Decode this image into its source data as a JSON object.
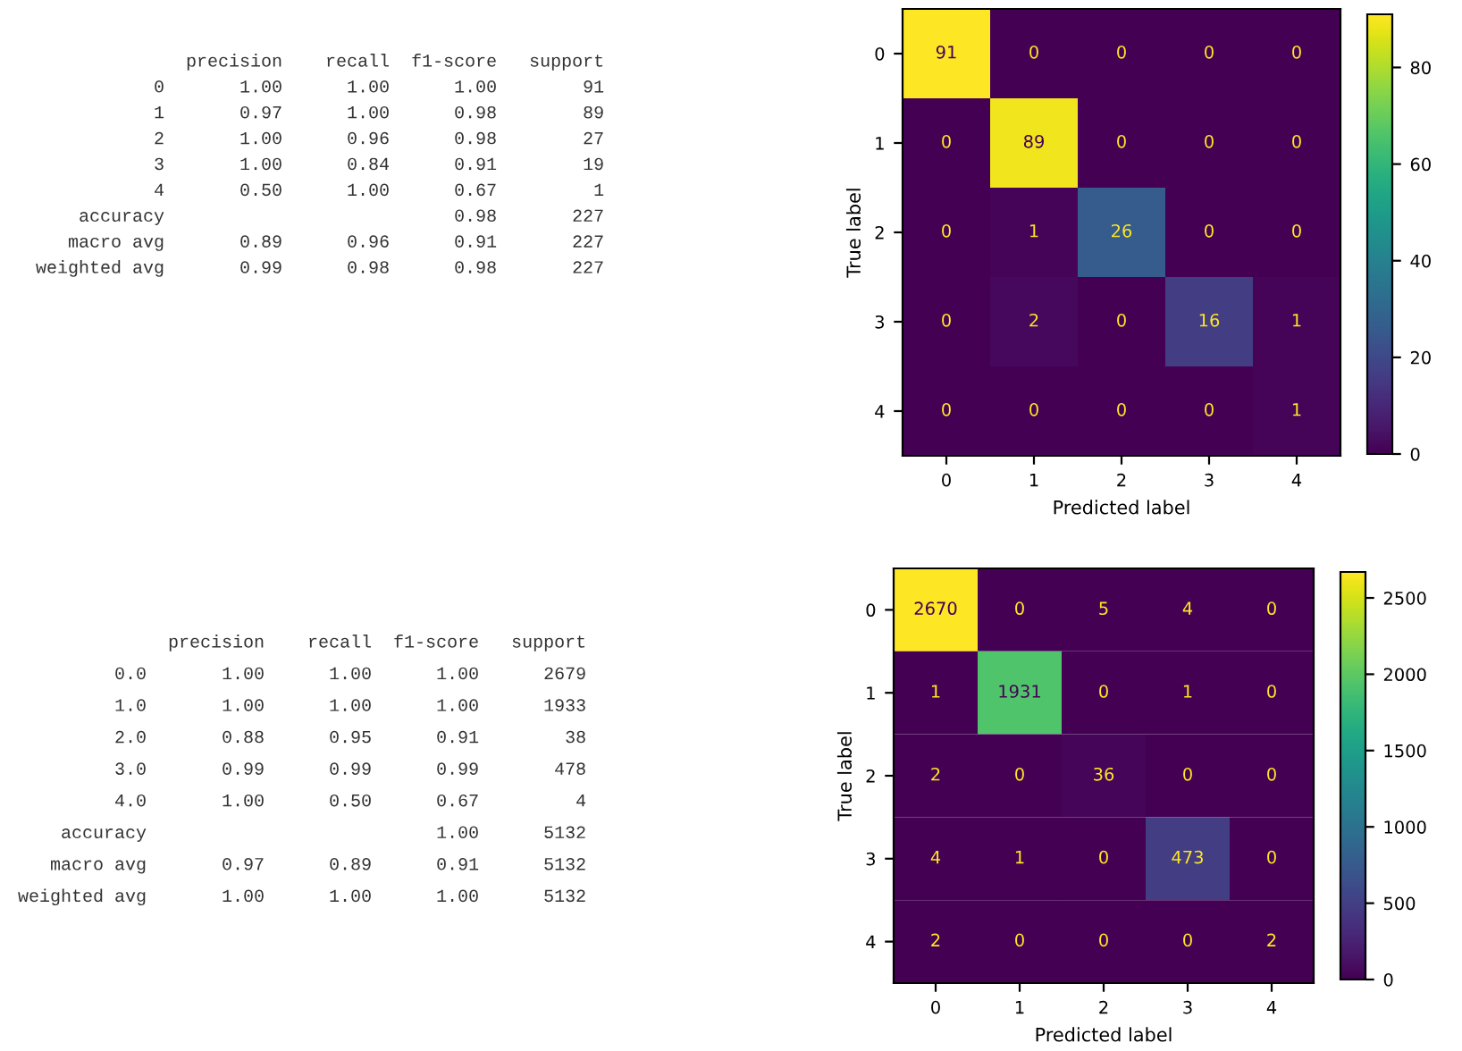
{
  "chart_data": [
    {
      "type": "other",
      "annotations": [
        "              precision    recall  f1-score   support",
        "           0       1.00      1.00      1.00        91",
        "           1       0.97      1.00      0.98        89",
        "           2       1.00      0.96      0.98        27",
        "           3       1.00      0.84      0.91        19",
        "           4       0.50      1.00      0.67         1",
        "    accuracy                           0.98       227",
        "   macro avg       0.89      0.96      0.91       227",
        "weighted avg       0.99      0.98      0.98       227"
      ]
    },
    {
      "type": "heatmap",
      "categories": [
        "0",
        "1",
        "2",
        "3",
        "4"
      ],
      "y_categories": [
        "0",
        "1",
        "2",
        "3",
        "4"
      ],
      "xlabel": "Predicted label",
      "ylabel": "True label",
      "cells": [
        [
          91,
          0,
          0,
          0,
          0
        ],
        [
          0,
          89,
          0,
          0,
          0
        ],
        [
          0,
          1,
          26,
          0,
          0
        ],
        [
          0,
          2,
          0,
          16,
          1
        ],
        [
          0,
          0,
          0,
          0,
          1
        ]
      ],
      "clim": [
        0,
        91
      ],
      "cticks": [
        0,
        20,
        40,
        60,
        80
      ],
      "data_labels": true
    },
    {
      "type": "other",
      "annotations": [
        "              precision    recall  f1-score   support",
        "         0.0       1.00      1.00      1.00      2679",
        "         1.0       1.00      1.00      1.00      1933",
        "         2.0       0.88      0.95      0.91        38",
        "         3.0       0.99      0.99      0.99       478",
        "         4.0       1.00      0.50      0.67         4",
        "    accuracy                           1.00      5132",
        "   macro avg       0.97      0.89      0.91      5132",
        "weighted avg       1.00      1.00      1.00      5132"
      ]
    },
    {
      "type": "heatmap",
      "categories": [
        "0",
        "1",
        "2",
        "3",
        "4"
      ],
      "y_categories": [
        "0",
        "1",
        "2",
        "3",
        "4"
      ],
      "xlabel": "Predicted label",
      "ylabel": "True label",
      "cells": [
        [
          2670,
          0,
          5,
          4,
          0
        ],
        [
          1,
          1931,
          0,
          1,
          0
        ],
        [
          2,
          0,
          36,
          0,
          0
        ],
        [
          4,
          1,
          0,
          473,
          0
        ],
        [
          2,
          0,
          0,
          0,
          2
        ]
      ],
      "clim": [
        0,
        2670
      ],
      "cticks": [
        0,
        500,
        1000,
        1500,
        2000,
        2500
      ],
      "data_labels": true
    }
  ]
}
